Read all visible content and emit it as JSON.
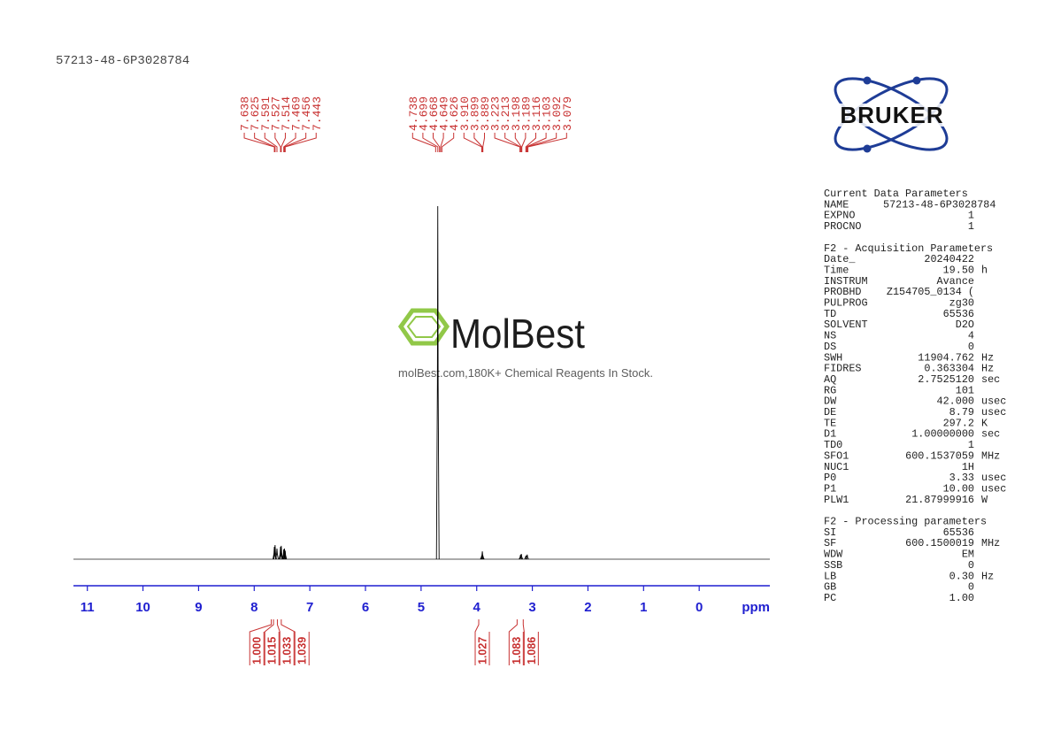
{
  "chart_data": {
    "type": "nmr",
    "title": "57213-48-6P3028784",
    "x_label": "ppm",
    "xlim": [
      11.25,
      -1.27
    ],
    "xticks": [
      11,
      10,
      9,
      8,
      7,
      6,
      5,
      4,
      3,
      2,
      1,
      0
    ],
    "ylim": [
      0,
      100
    ],
    "color": "#000000",
    "axis_color": "#1f1fd0",
    "label_color": "#c83232",
    "peaks": {
      "x": [
        7.638,
        7.625,
        7.591,
        7.527,
        7.514,
        7.469,
        7.456,
        7.443,
        4.7,
        3.91,
        3.899,
        3.889,
        3.213,
        3.198,
        3.116,
        3.092
      ],
      "values": [
        3.5,
        4,
        3,
        3.5,
        3.8,
        2.8,
        3,
        2.4,
        100,
        1,
        2.2,
        1,
        1.2,
        1.5,
        1,
        1.3
      ]
    },
    "peak_picks": {
      "values": [
        7.638,
        7.625,
        7.591,
        7.527,
        7.514,
        7.469,
        7.456,
        7.443,
        4.738,
        4.699,
        4.668,
        4.649,
        4.626,
        3.91,
        3.899,
        3.889,
        3.223,
        3.213,
        3.198,
        3.189,
        3.116,
        3.103,
        3.092,
        3.079
      ],
      "value_labels": [
        "7.638",
        "7.625",
        "7.591",
        "7.527",
        "7.514",
        "7.469",
        "7.456",
        "7.443",
        "4.738",
        "4.699",
        "4.668",
        "4.649",
        "4.626",
        "3.910",
        "3.899",
        "3.889",
        "3.223",
        "3.213",
        "3.198",
        "3.189",
        "3.116",
        "3.103",
        "3.092",
        "3.079"
      ]
    },
    "integrals": {
      "x": [
        7.63,
        7.59,
        7.52,
        7.45,
        3.9,
        3.21,
        3.1
      ],
      "values": [
        1,
        1.015,
        1.033,
        1.039,
        1.027,
        1.083,
        1.086
      ],
      "value_labels": [
        "1.000",
        "1.015",
        "1.033",
        "1.039",
        "1.027",
        "1.083",
        "1.086"
      ]
    }
  },
  "logo": "BRUKER",
  "watermark": {
    "name": "MolBest",
    "tagline": "molBest.com,180K+ Chemical Reagents In Stock."
  },
  "parameters": [
    {
      "title": "Current Data Parameters",
      "rows": [
        [
          "NAME",
          "57213-48-6P3028784"
        ],
        [
          "EXPNO",
          "1"
        ],
        [
          "PROCNO",
          "1"
        ]
      ]
    },
    {
      "title": "F2 - Acquisition Parameters",
      "rows": [
        [
          "Date_",
          "20240422"
        ],
        [
          "Time",
          "19.50",
          "h"
        ],
        [
          "INSTRUM",
          "Avance"
        ],
        [
          "PROBHD",
          "Z154705_0134 ("
        ],
        [
          "PULPROG",
          "zg30"
        ],
        [
          "TD",
          "65536"
        ],
        [
          "SOLVENT",
          "D2O"
        ],
        [
          "NS",
          "4"
        ],
        [
          "DS",
          "0"
        ],
        [
          "SWH",
          "11904.762",
          "Hz"
        ],
        [
          "FIDRES",
          "0.363304",
          "Hz"
        ],
        [
          "AQ",
          "2.7525120",
          "sec"
        ],
        [
          "RG",
          "101"
        ],
        [
          "DW",
          "42.000",
          "usec"
        ],
        [
          "DE",
          "8.79",
          "usec"
        ],
        [
          "TE",
          "297.2",
          "K"
        ],
        [
          "D1",
          "1.00000000",
          "sec"
        ],
        [
          "TD0",
          "1"
        ],
        [
          "SFO1",
          "600.1537059",
          "MHz"
        ],
        [
          "NUC1",
          "1H"
        ],
        [
          "P0",
          "3.33",
          "usec"
        ],
        [
          "P1",
          "10.00",
          "usec"
        ],
        [
          "PLW1",
          "21.87999916",
          "W"
        ]
      ]
    },
    {
      "title": "F2 - Processing parameters",
      "rows": [
        [
          "SI",
          "65536"
        ],
        [
          "SF",
          "600.1500019",
          "MHz"
        ],
        [
          "WDW",
          "EM"
        ],
        [
          "SSB",
          "0"
        ],
        [
          "LB",
          "0.30",
          "Hz"
        ],
        [
          "GB",
          "0"
        ],
        [
          "PC",
          "1.00"
        ]
      ]
    }
  ]
}
